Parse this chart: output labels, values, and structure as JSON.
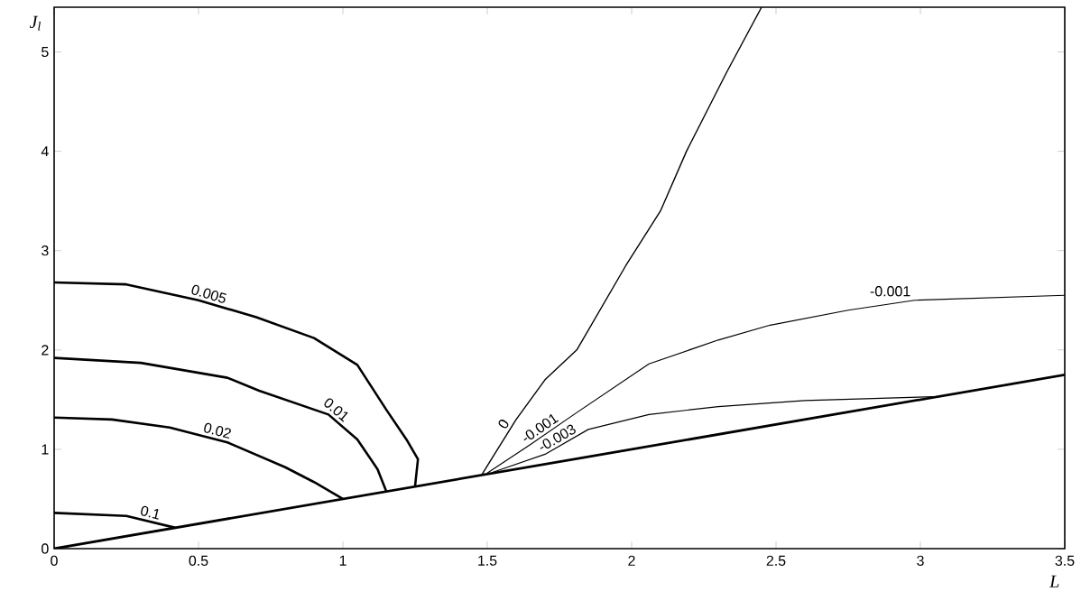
{
  "chart_data": {
    "type": "line",
    "xlabel": "L",
    "ylabel": "J$_{l}$",
    "xlim": [
      0,
      3.5
    ],
    "ylim": [
      0,
      5.45
    ],
    "xticks": [
      0,
      0.5,
      1,
      1.5,
      2,
      2.5,
      3,
      3.5
    ],
    "yticks": [
      0,
      1,
      2,
      3,
      4,
      5
    ],
    "marker": "none",
    "line_style": "solid",
    "annotations": [
      {
        "text": "-0.001",
        "x": 2.98,
        "y": 2.5
      }
    ],
    "series": [
      {
        "name": "0.1",
        "color": "#000000",
        "x": [
          0,
          0.25,
          0.42
        ],
        "values": [
          0.36,
          0.33,
          0.21
        ]
      },
      {
        "name": "0.02",
        "color": "#000000",
        "x": [
          0,
          0.2,
          0.4,
          0.6,
          0.8,
          0.9,
          1.0
        ],
        "values": [
          1.32,
          1.3,
          1.22,
          1.07,
          0.82,
          0.67,
          0.5
        ]
      },
      {
        "name": "0.01",
        "color": "#000000",
        "x": [
          0,
          0.3,
          0.6,
          0.71,
          0.95,
          1.05,
          1.12,
          1.15
        ],
        "values": [
          1.92,
          1.87,
          1.72,
          1.59,
          1.35,
          1.1,
          0.8,
          0.58
        ]
      },
      {
        "name": "0.005",
        "color": "#000000",
        "x": [
          0,
          0.25,
          0.5,
          0.7,
          0.9,
          1.05,
          1.15,
          1.22,
          1.26,
          1.25
        ],
        "values": [
          2.68,
          2.66,
          2.5,
          2.33,
          2.12,
          1.85,
          1.4,
          1.1,
          0.9,
          0.63
        ]
      },
      {
        "name": "0",
        "color": "#000000",
        "x": [
          1.48,
          1.6,
          1.7,
          1.81,
          1.98,
          2.1,
          2.19,
          2.33,
          2.45
        ],
        "values": [
          0.74,
          1.3,
          1.7,
          2.0,
          2.85,
          3.4,
          4.0,
          4.8,
          5.45
        ]
      },
      {
        "name": "-0.001",
        "color": "#000000",
        "x": [
          1.5,
          1.65,
          1.8,
          2.06,
          2.3,
          2.48,
          2.75,
          2.98,
          3.5
        ],
        "values": [
          0.76,
          1.05,
          1.35,
          1.86,
          2.1,
          2.25,
          2.4,
          2.5,
          2.55
        ]
      },
      {
        "name": "-0.003",
        "color": "#000000",
        "x": [
          1.52,
          1.7,
          1.85,
          2.06,
          2.3,
          2.6,
          3.05
        ],
        "values": [
          0.77,
          0.95,
          1.2,
          1.35,
          1.43,
          1.49,
          1.53
        ]
      },
      {
        "color": "#000000",
        "x": [
          0,
          3.5
        ],
        "values": [
          0,
          1.75
        ]
      }
    ]
  }
}
